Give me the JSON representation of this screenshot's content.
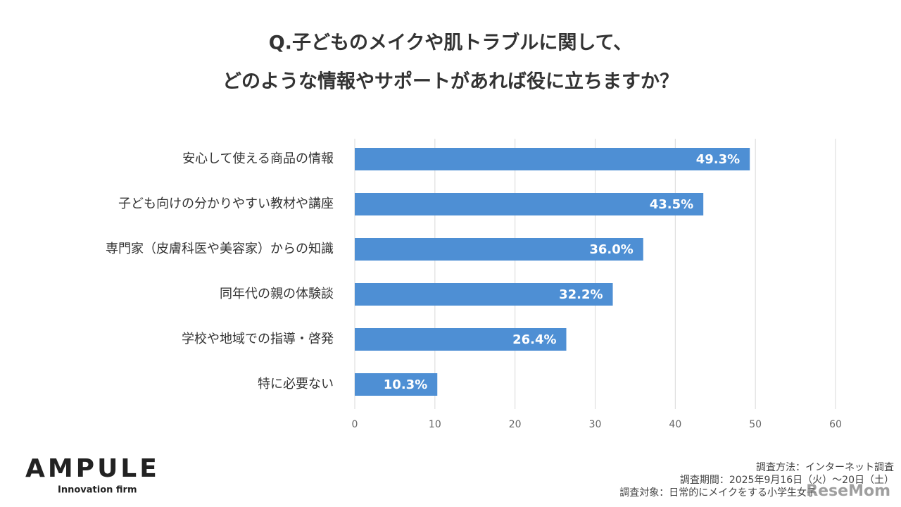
{
  "chart_data": {
    "type": "bar",
    "orientation": "horizontal",
    "title": [
      "Q.子どものメイクや肌トラブルに関して、",
      "どのような情報やサポートがあれば役に立ちますか？"
    ],
    "categories": [
      "安心して使える商品の情報",
      "子ども向けの分かりやすい教材や講座",
      "専門家（皮膚科医や美容家）からの知識",
      "同年代の親の体験談",
      "学校や地域での指導・啓発",
      "特に必要ない"
    ],
    "values": [
      49.3,
      43.5,
      36.0,
      32.2,
      26.4,
      10.3
    ],
    "value_labels": [
      "49.3%",
      "43.5%",
      "36.0%",
      "32.2%",
      "26.4%",
      "10.3%"
    ],
    "color": "#4e8fd4",
    "xlim": [
      0,
      60
    ],
    "xticks": [
      0,
      10,
      20,
      30,
      40,
      50,
      60
    ],
    "grid": true
  },
  "logo": {
    "name": "AMPULE",
    "tagline": "Innovation firm"
  },
  "notes": [
    "調査方法：インターネット調査",
    "調査期間：2025年9月16日（火）～20日（土）",
    "調査対象：日常的にメイクをする小学生女子"
  ],
  "watermark": "ReseMom"
}
